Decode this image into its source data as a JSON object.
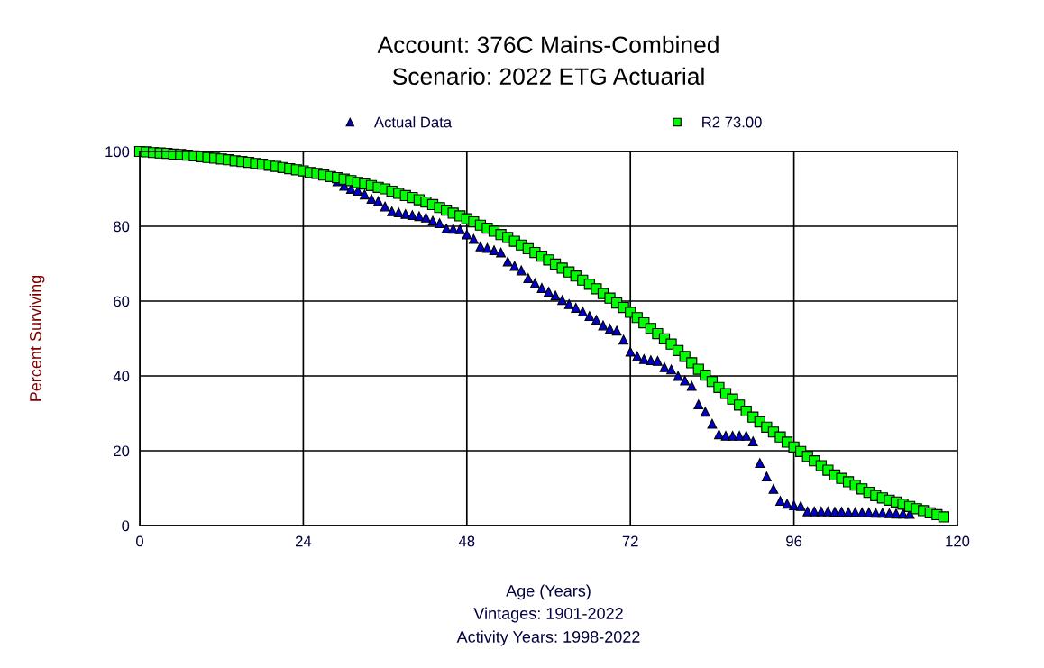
{
  "chart_data": {
    "type": "scatter",
    "title": "Account: 376C Mains-Combined",
    "subtitle": "Scenario: 2022 ETG Actuarial",
    "xlabel": "Age (Years)",
    "ylabel": "Percent Surviving",
    "annotations": [
      "Vintages: 1901-2022",
      "Activity Years: 1998-2022"
    ],
    "xlim": [
      0,
      120
    ],
    "xticks": [
      0,
      24,
      48,
      72,
      96,
      120
    ],
    "ylim": [
      0,
      100
    ],
    "yticks": [
      0,
      20,
      40,
      60,
      80,
      100
    ],
    "grid": true,
    "legend": "top",
    "series": [
      {
        "name": "Actual Data",
        "color": "#0000cc",
        "marker": "triangle",
        "x": [
          29,
          30,
          31,
          32,
          33,
          34,
          35,
          36,
          37,
          38,
          39,
          40,
          41,
          42,
          43,
          44,
          45,
          46,
          47,
          48,
          49,
          50,
          51,
          52,
          53,
          54,
          55,
          56,
          57,
          58,
          59,
          60,
          61,
          62,
          63,
          64,
          65,
          66,
          67,
          68,
          69,
          70,
          71,
          72,
          73,
          74,
          75,
          76,
          77,
          78,
          79,
          80,
          81,
          82,
          83,
          84,
          85,
          86,
          87,
          88,
          89,
          90,
          91,
          92,
          93,
          94,
          95,
          96,
          97,
          98,
          99,
          100,
          101,
          102,
          103,
          104,
          105,
          106,
          107,
          108,
          109,
          110,
          111,
          112,
          113
        ],
        "values": [
          92.0,
          90.8,
          90.0,
          89.5,
          88.5,
          87.3,
          86.7,
          85.3,
          84.0,
          83.7,
          83.3,
          83.0,
          82.7,
          82.3,
          81.5,
          80.8,
          79.4,
          79.3,
          79.2,
          77.8,
          76.6,
          74.6,
          74.2,
          73.6,
          73.0,
          70.6,
          69.4,
          68.2,
          66.1,
          64.8,
          63.5,
          62.5,
          61.5,
          60.3,
          59.2,
          58.2,
          57.2,
          56.0,
          55.0,
          53.5,
          52.6,
          52.1,
          49.7,
          46.5,
          45.3,
          44.5,
          44.2,
          44.0,
          42.3,
          41.7,
          40.0,
          38.8,
          37.3,
          32.4,
          30.4,
          27.2,
          24.4,
          24.0,
          24.0,
          24.0,
          24.0,
          22.5,
          16.7,
          13.1,
          9.8,
          6.6,
          5.8,
          5.4,
          5.2,
          3.8,
          3.8,
          3.8,
          3.8,
          3.7,
          3.7,
          3.6,
          3.6,
          3.5,
          3.5,
          3.4,
          3.4,
          3.3,
          3.2,
          3.2,
          3.1
        ]
      },
      {
        "name": "R2 73.00",
        "color": "#00ff00",
        "marker": "square",
        "x": [
          0,
          1,
          2,
          3,
          4,
          5,
          6,
          7,
          8,
          9,
          10,
          11,
          12,
          13,
          14,
          15,
          16,
          17,
          18,
          19,
          20,
          21,
          22,
          23,
          24,
          25,
          26,
          27,
          28,
          29,
          30,
          31,
          32,
          33,
          34,
          35,
          36,
          37,
          38,
          39,
          40,
          41,
          42,
          43,
          44,
          45,
          46,
          47,
          48,
          49,
          50,
          51,
          52,
          53,
          54,
          55,
          56,
          57,
          58,
          59,
          60,
          61,
          62,
          63,
          64,
          65,
          66,
          67,
          68,
          69,
          70,
          71,
          72,
          73,
          74,
          75,
          76,
          77,
          78,
          79,
          80,
          81,
          82,
          83,
          84,
          85,
          86,
          87,
          88,
          89,
          90,
          91,
          92,
          93,
          94,
          95,
          96,
          97,
          98,
          99,
          100,
          101,
          102,
          103,
          104,
          105,
          106,
          107,
          108,
          109,
          110,
          111,
          112,
          113,
          114,
          115,
          116,
          117,
          118
        ],
        "values": [
          100,
          99.9,
          99.7,
          99.6,
          99.5,
          99.3,
          99.2,
          99.0,
          98.8,
          98.6,
          98.4,
          98.2,
          98.0,
          97.8,
          97.5,
          97.3,
          97.1,
          96.8,
          96.6,
          96.3,
          96.0,
          95.7,
          95.4,
          95.1,
          94.8,
          94.4,
          94.1,
          93.7,
          93.3,
          93.0,
          92.6,
          92.2,
          91.7,
          91.3,
          90.9,
          90.4,
          90.0,
          89.4,
          88.8,
          88.2,
          87.7,
          87.1,
          86.5,
          85.8,
          85.0,
          84.3,
          83.5,
          82.8,
          82.0,
          81.2,
          80.3,
          79.5,
          78.7,
          77.8,
          77.0,
          76.0,
          75.0,
          74.0,
          73.0,
          72.0,
          71.0,
          69.9,
          68.8,
          67.8,
          66.7,
          65.6,
          64.5,
          63.3,
          62.0,
          60.8,
          59.5,
          58.3,
          57.0,
          55.6,
          54.2,
          52.7,
          51.3,
          49.9,
          48.5,
          46.8,
          45.2,
          43.5,
          41.8,
          40.2,
          38.5,
          36.9,
          35.3,
          33.8,
          32.2,
          30.6,
          29.0,
          27.7,
          26.3,
          25.0,
          23.7,
          22.3,
          21.0,
          19.8,
          18.5,
          17.3,
          16.0,
          14.8,
          13.5,
          12.6,
          11.7,
          10.8,
          9.8,
          8.9,
          8.0,
          7.4,
          6.8,
          6.3,
          5.7,
          5.1,
          4.5,
          4.0,
          3.4,
          2.9,
          2.3
        ]
      }
    ]
  }
}
